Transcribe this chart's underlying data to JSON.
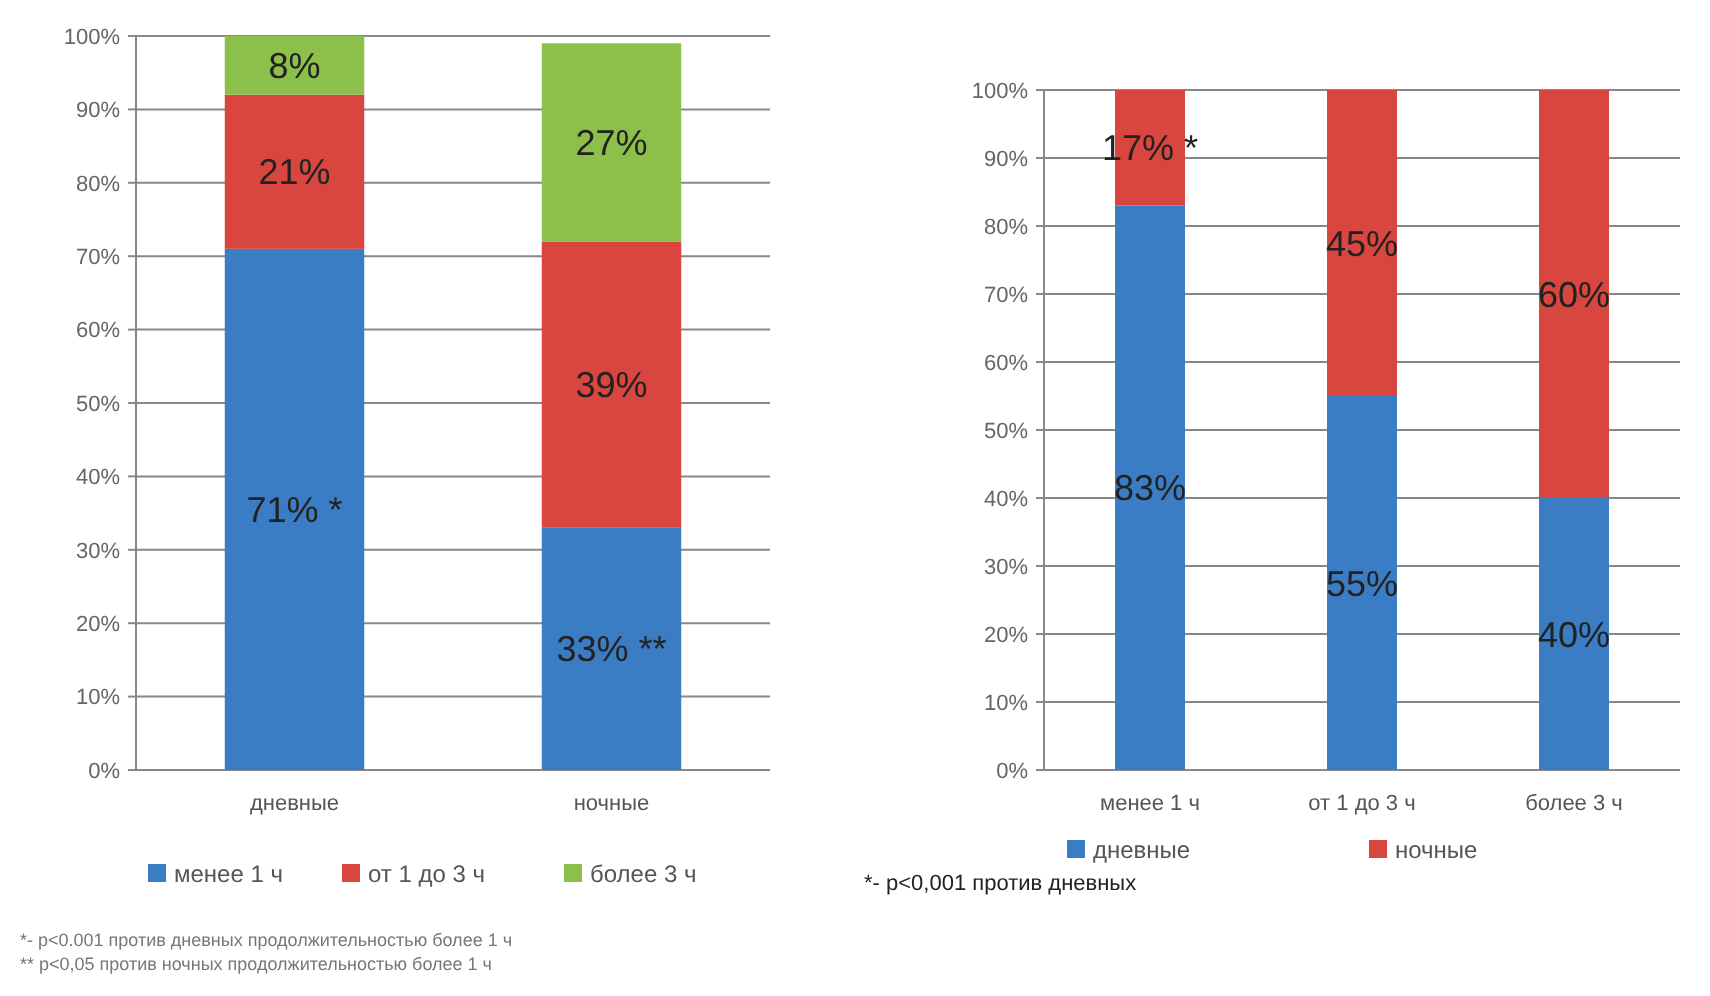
{
  "chart_data": [
    {
      "type": "bar",
      "stacked": true,
      "categories": [
        "дневные",
        "ночные"
      ],
      "series": [
        {
          "name": "менее 1 ч",
          "color": "#3b7dc4",
          "values": [
            71,
            33
          ],
          "value_labels": [
            "71% *",
            "33% **"
          ]
        },
        {
          "name": "от 1 до 3 ч",
          "color": "#d8463f",
          "values": [
            21,
            39
          ],
          "value_labels": [
            "21%",
            "39%"
          ]
        },
        {
          "name": "более 3 ч",
          "color": "#8dbf4b",
          "values": [
            8,
            27
          ],
          "value_labels": [
            "8%",
            "27%"
          ]
        }
      ],
      "ylim": [
        0,
        100
      ],
      "yticks": [
        {
          "value": 0,
          "label": "0%"
        },
        {
          "value": 10,
          "label": "10%"
        },
        {
          "value": 20,
          "label": "20%"
        },
        {
          "value": 30,
          "label": "30%"
        },
        {
          "value": 40,
          "label": "40%"
        },
        {
          "value": 50,
          "label": "50%"
        },
        {
          "value": 60,
          "label": "60%"
        },
        {
          "value": 70,
          "label": "70%"
        },
        {
          "value": 80,
          "label": "80%"
        },
        {
          "value": 90,
          "label": "90%"
        },
        {
          "value": 100,
          "label": "100%"
        }
      ],
      "grid": "y",
      "legend": "bottom",
      "annotations": [
        "*- p<0.001 против дневных продолжительностью более 1 ч",
        "** p<0,05 против ночных продолжительностью более 1 ч"
      ]
    },
    {
      "type": "bar",
      "stacked": true,
      "categories": [
        "менее 1 ч",
        "от 1 до 3 ч",
        "более 3 ч"
      ],
      "series": [
        {
          "name": "дневные",
          "color": "#3b7dc4",
          "values": [
            83,
            55,
            40
          ],
          "value_labels": [
            "83%",
            "55%",
            "40%"
          ]
        },
        {
          "name": "ночные",
          "color": "#d8463f",
          "values": [
            17,
            45,
            60
          ],
          "value_labels": [
            "17% *",
            "45%",
            "60%"
          ]
        }
      ],
      "ylim": [
        0,
        100
      ],
      "yticks": [
        {
          "value": 0,
          "label": "0%"
        },
        {
          "value": 10,
          "label": "10%"
        },
        {
          "value": 20,
          "label": "20%"
        },
        {
          "value": 30,
          "label": "30%"
        },
        {
          "value": 40,
          "label": "40%"
        },
        {
          "value": 50,
          "label": "50%"
        },
        {
          "value": 60,
          "label": "60%"
        },
        {
          "value": 70,
          "label": "70%"
        },
        {
          "value": 80,
          "label": "80%"
        },
        {
          "value": 90,
          "label": "90%"
        },
        {
          "value": 100,
          "label": "100%"
        }
      ],
      "grid": "y",
      "legend": "bottom",
      "annotations": [
        "*- p<0,001 против дневных"
      ]
    }
  ]
}
